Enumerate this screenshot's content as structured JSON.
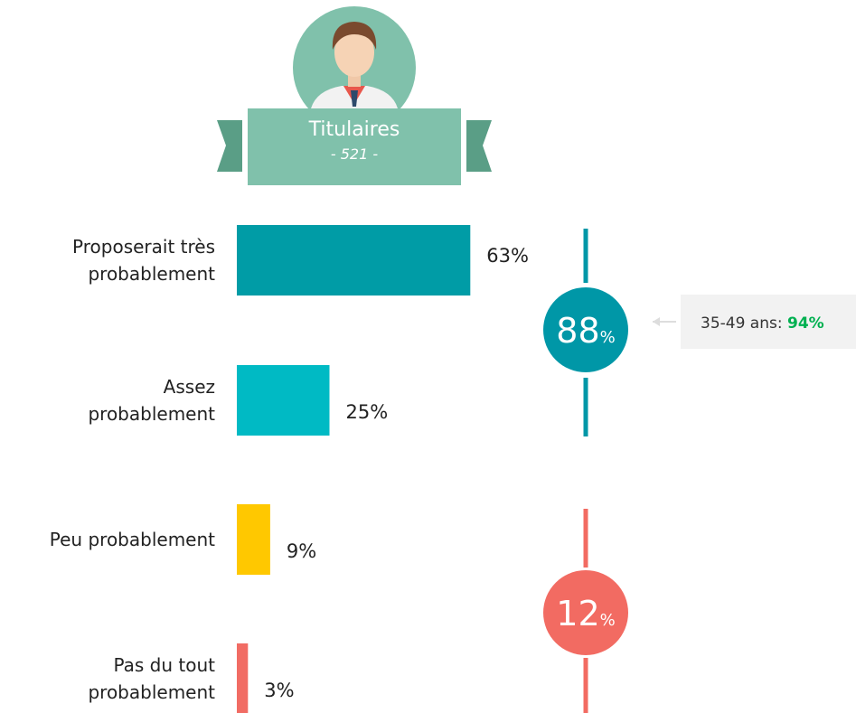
{
  "chart_data": {
    "type": "bar",
    "group": "Titulaires",
    "count_label": "- 521 -",
    "categories": [
      "Proposerait très\nprobablement",
      "Assez\nprobablement",
      "Peu probablement",
      "Pas du tout\nprobablement"
    ],
    "values": [
      63,
      25,
      9,
      3
    ],
    "value_labels": [
      "63%",
      "25%",
      "9%",
      "3%"
    ],
    "colors": [
      "#009ca6",
      "#00bac4",
      "#ffc800",
      "#f16c64"
    ],
    "totals": [
      {
        "value": 88,
        "unit": "%",
        "color": "#0097a7"
      },
      {
        "value": 12,
        "unit": "%",
        "color": "#f26b62"
      }
    ],
    "annotation": {
      "text": "35-49 ans:",
      "highlight": "94%",
      "highlight_color": "#00b050"
    }
  }
}
